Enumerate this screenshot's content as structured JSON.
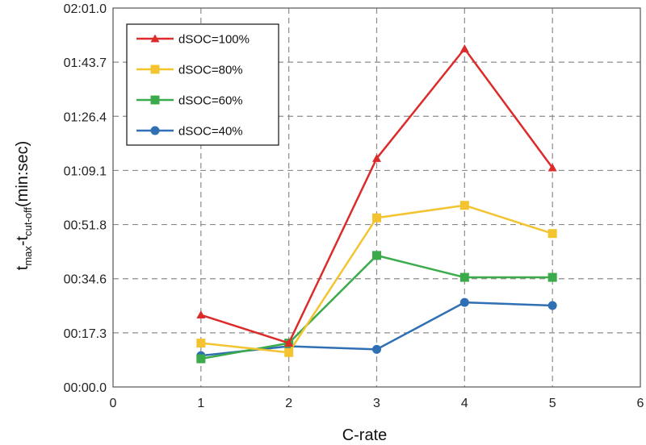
{
  "chart_data": {
    "type": "line",
    "xlabel": "C-rate",
    "ylabel": {
      "main": "t",
      "sub1": "max",
      "sep": "-t",
      "sub2": "cut-off",
      "unit": "(min:sec)"
    },
    "xlim": [
      0,
      6
    ],
    "xticks": [
      "0",
      "1",
      "2",
      "3",
      "4",
      "5",
      "6"
    ],
    "ylim_seconds": [
      0,
      121
    ],
    "yticks": [
      "00:00.0",
      "00:17.3",
      "00:34.6",
      "00:51.8",
      "01:09.1",
      "01:26.4",
      "01:43.7",
      "02:01.0"
    ],
    "grid": true,
    "legend_position": "top-left",
    "series": [
      {
        "name": "dSOC=100%",
        "color": "#dc2b2b",
        "marker": "triangle",
        "x": [
          1,
          2,
          3,
          4,
          5
        ],
        "y_seconds": [
          23,
          14,
          73,
          108,
          70
        ]
      },
      {
        "name": "dSOC=80%",
        "color": "#f4c430",
        "marker": "square",
        "x": [
          1,
          2,
          3,
          4,
          5
        ],
        "y_seconds": [
          14,
          11,
          54,
          58,
          49
        ]
      },
      {
        "name": "dSOC=60%",
        "color": "#3aaa4a",
        "marker": "square",
        "x": [
          1,
          2,
          3,
          4,
          5
        ],
        "y_seconds": [
          9,
          14,
          42,
          35,
          35
        ]
      },
      {
        "name": "dSOC=40%",
        "color": "#2f6fb3",
        "marker": "circle",
        "x": [
          1,
          2,
          3,
          4,
          5
        ],
        "y_seconds": [
          10,
          13,
          12,
          27,
          26
        ]
      }
    ]
  }
}
